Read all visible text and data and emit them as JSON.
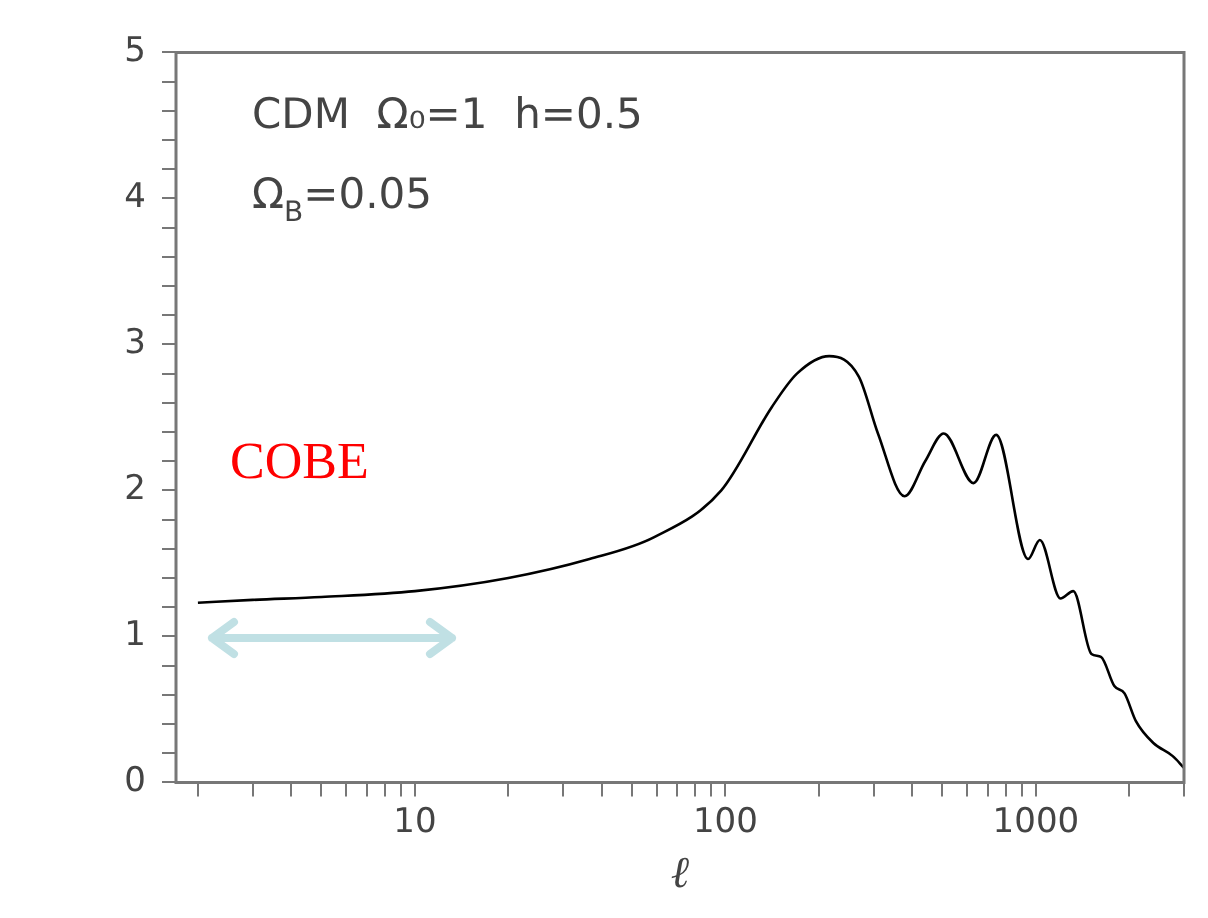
{
  "chart_data": {
    "type": "line",
    "xlabel": "ℓ",
    "log": "x",
    "annotations": [
      "CDM  Ω₀=1  h=0.5",
      "Ω$_{B}$=0.05",
      "COBE"
    ],
    "series": [
      {
        "color": "#000000",
        "x": [
          2,
          3,
          5,
          10,
          20,
          36.5,
          59,
          97,
          141,
          170,
          216,
          269,
          310,
          378,
          440,
          505,
          630,
          745,
          944,
          1030,
          1200,
          1320,
          1510,
          1620,
          1790,
          1930,
          2100,
          2390,
          2760,
          3000
        ],
        "values": [
          1.23,
          1.25,
          1.27,
          1.31,
          1.4,
          1.53,
          1.68,
          2.0,
          2.57,
          2.8,
          2.92,
          2.78,
          2.39,
          1.96,
          2.2,
          2.39,
          2.05,
          2.38,
          1.53,
          1.66,
          1.26,
          1.31,
          0.88,
          0.86,
          0.66,
          0.61,
          0.42,
          0.27,
          0.18,
          0.1
        ]
      }
    ],
    "xlim": [
      1.7,
      3000
    ],
    "xticks": [
      {
        "value": 2,
        "label": null
      },
      {
        "value": 3,
        "label": null
      },
      {
        "value": 4,
        "label": null
      },
      {
        "value": 5,
        "label": null
      },
      {
        "value": 6,
        "label": null
      },
      {
        "value": 7,
        "label": null
      },
      {
        "value": 8,
        "label": null
      },
      {
        "value": 9,
        "label": null
      },
      10,
      {
        "value": 20,
        "label": null
      },
      {
        "value": 30,
        "label": null
      },
      {
        "value": 40,
        "label": null
      },
      {
        "value": 50,
        "label": null
      },
      {
        "value": 60,
        "label": null
      },
      {
        "value": 70,
        "label": null
      },
      {
        "value": 80,
        "label": null
      },
      {
        "value": 90,
        "label": null
      },
      100,
      {
        "value": 200,
        "label": null
      },
      {
        "value": 300,
        "label": null
      },
      {
        "value": 400,
        "label": null
      },
      {
        "value": 500,
        "label": null
      },
      {
        "value": 600,
        "label": null
      },
      {
        "value": 700,
        "label": null
      },
      {
        "value": 800,
        "label": null
      },
      {
        "value": 900,
        "label": null
      },
      1000,
      {
        "value": 2000,
        "label": null
      },
      {
        "value": 3000,
        "label": null
      }
    ],
    "ylim": [
      0,
      5
    ],
    "yticks": [
      0,
      {
        "value": 0.2,
        "label": null
      },
      {
        "value": 0.4,
        "label": null
      },
      {
        "value": 0.6,
        "label": null
      },
      {
        "value": 0.8,
        "label": null
      },
      1,
      {
        "value": 1.2,
        "label": null
      },
      {
        "value": 1.4,
        "label": null
      },
      {
        "value": 1.6,
        "label": null
      },
      {
        "value": 1.8,
        "label": null
      },
      2,
      {
        "value": 2.2,
        "label": null
      },
      {
        "value": 2.4,
        "label": null
      },
      {
        "value": 2.6,
        "label": null
      },
      {
        "value": 2.8,
        "label": null
      },
      3,
      {
        "value": 3.2,
        "label": null
      },
      {
        "value": 3.4,
        "label": null
      },
      {
        "value": 3.6,
        "label": null
      },
      {
        "value": 3.8,
        "label": null
      },
      4,
      {
        "value": 4.2,
        "label": null
      },
      {
        "value": 4.4,
        "label": null
      },
      {
        "value": 4.6,
        "label": null
      },
      {
        "value": 4.8,
        "label": null
      },
      5
    ],
    "grid": false,
    "legend": false,
    "marker": "none",
    "line_style": "solid"
  }
}
